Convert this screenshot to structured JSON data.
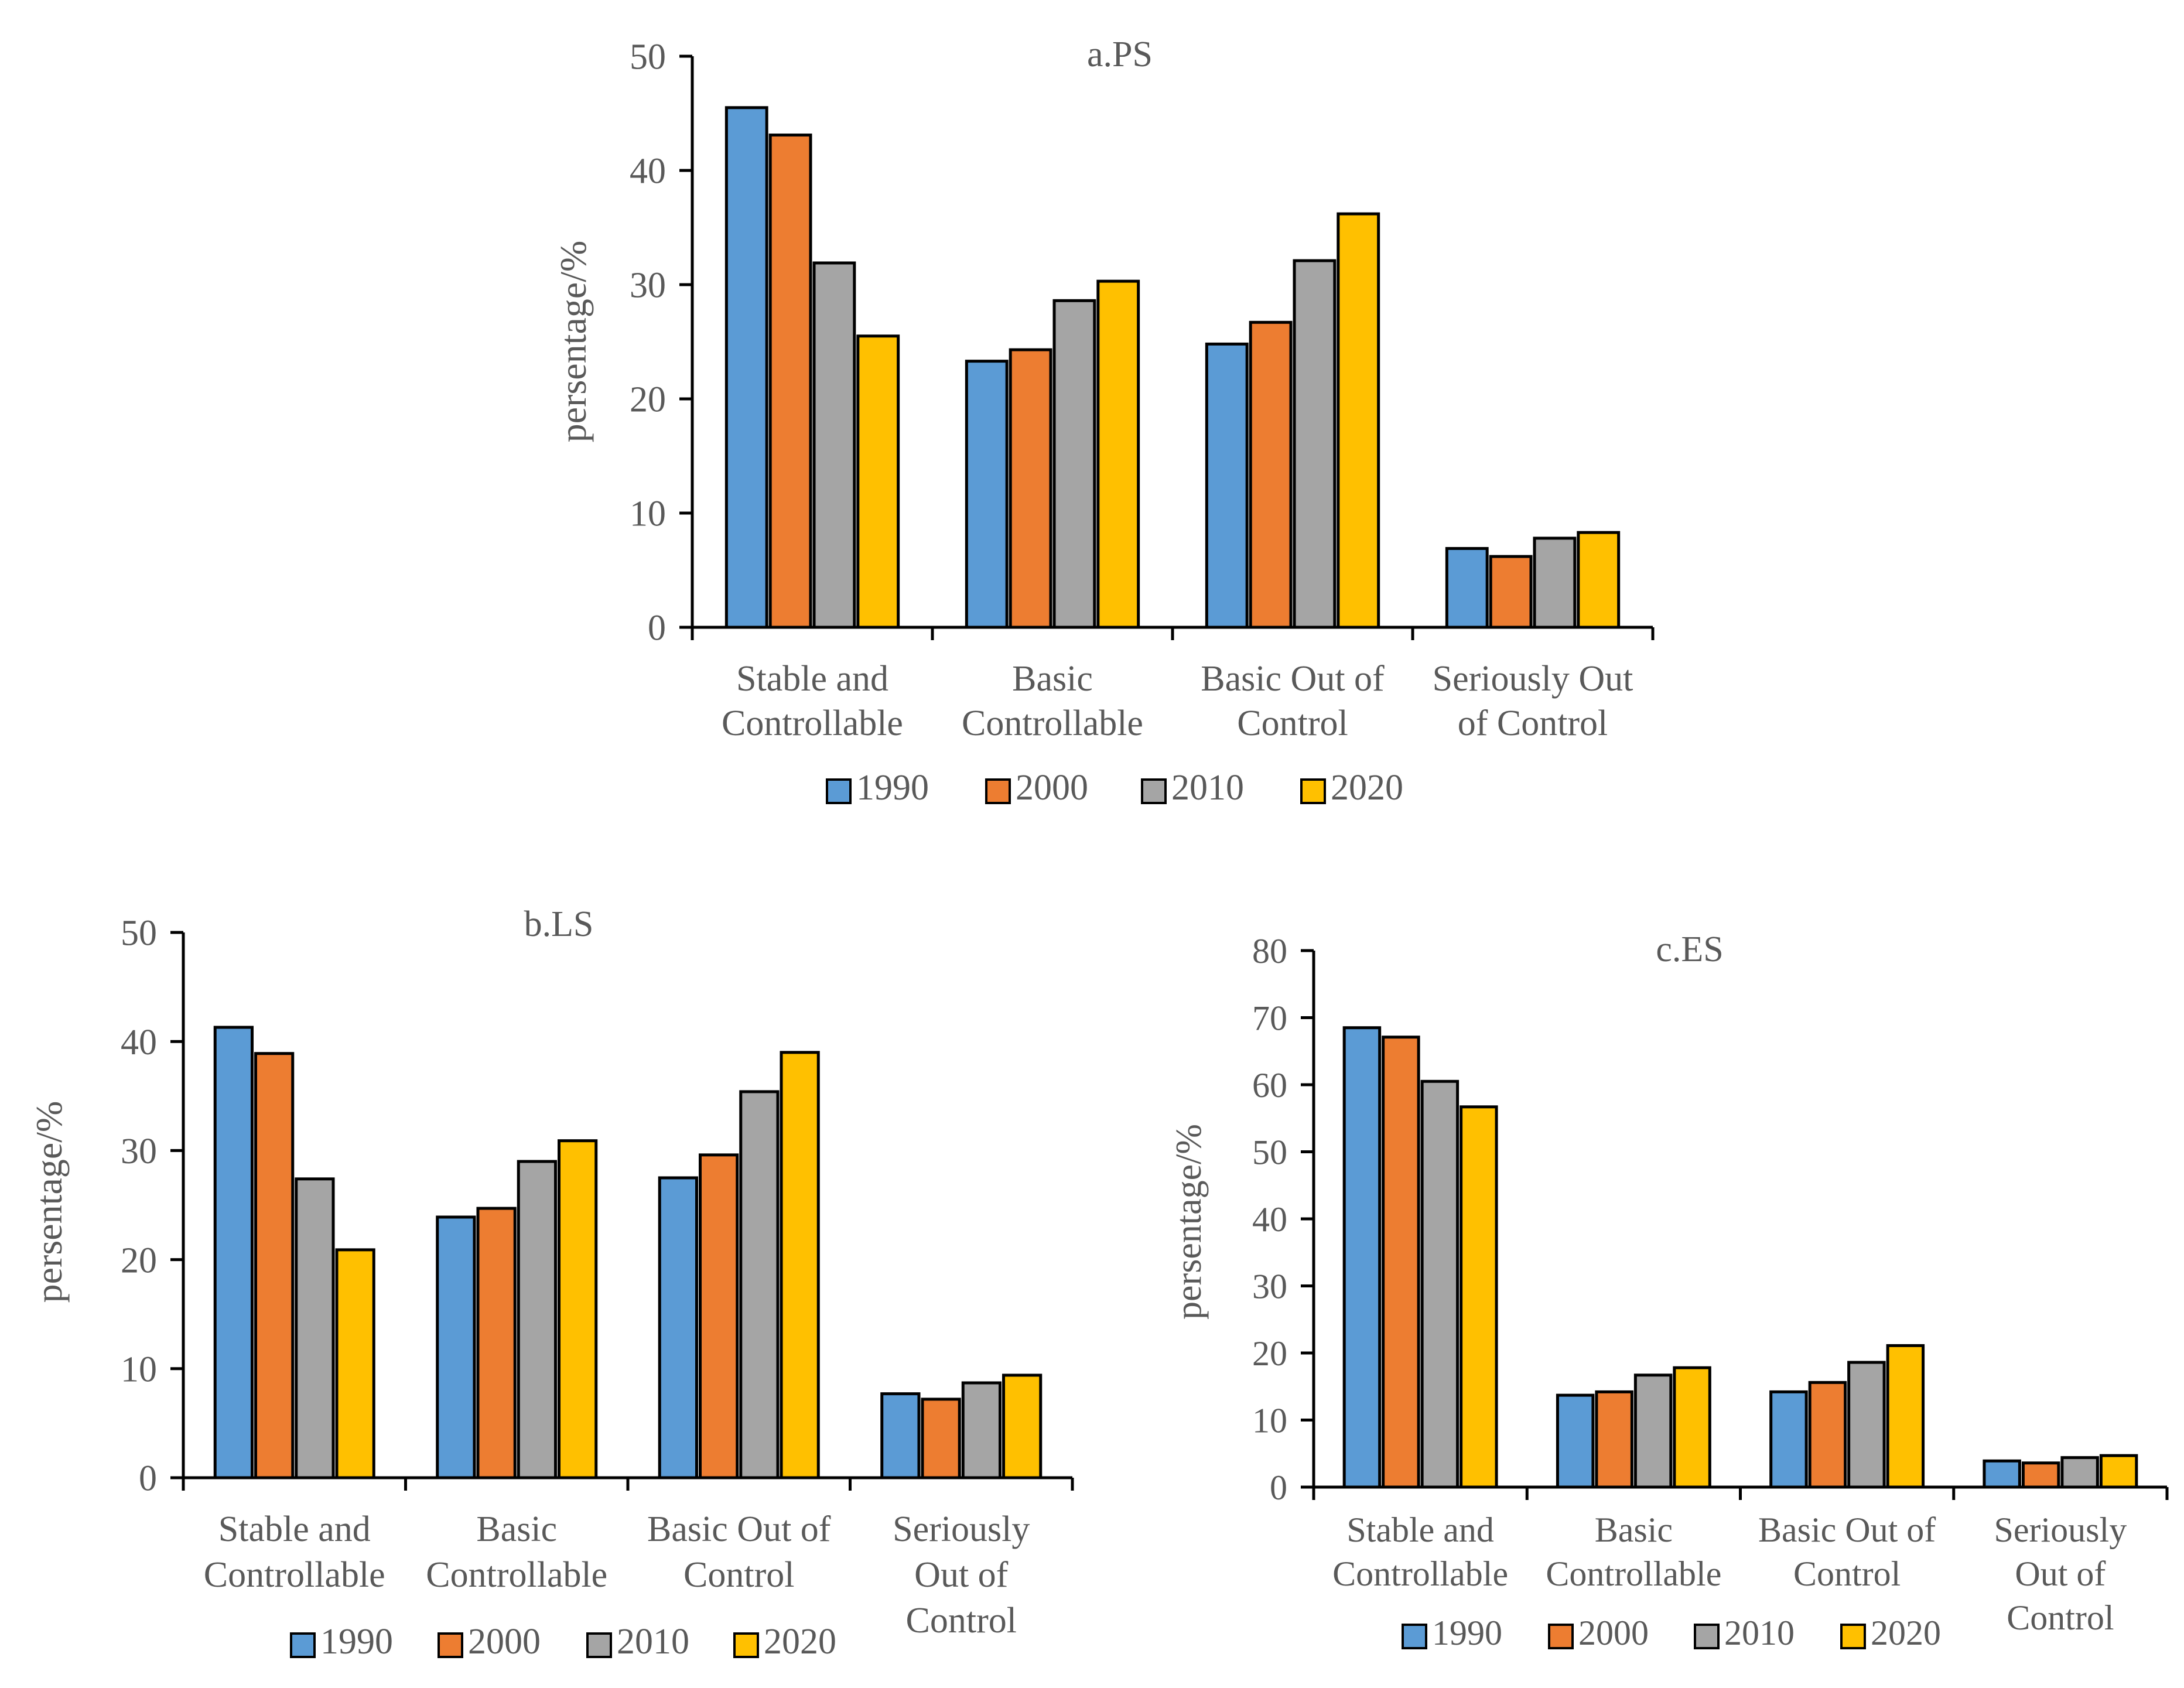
{
  "colors": {
    "1990": "#5b9bd5",
    "2000": "#ed7d31",
    "2010": "#a5a5a5",
    "2020": "#ffc000",
    "axis": "#000000",
    "text": "#595959"
  },
  "chart_data": [
    {
      "type": "bar",
      "title": "a.PS",
      "ylabel": "persentage/%",
      "xlabel": "",
      "ylim": [
        0,
        50
      ],
      "ytick_step": 10,
      "category_lines": [
        [
          "Stable and",
          "Controllable"
        ],
        [
          "Basic",
          "Controllable"
        ],
        [
          "Basic Out of",
          "Control"
        ],
        [
          "Seriously Out",
          "of Control"
        ]
      ],
      "categories": [
        "Stable and Controllable",
        "Basic Controllable",
        "Basic Out of Control",
        "Seriously Out of Control"
      ],
      "series": [
        {
          "name": "1990",
          "values": [
            45.5,
            23.3,
            24.8,
            6.9
          ]
        },
        {
          "name": "2000",
          "values": [
            43.1,
            24.3,
            26.7,
            6.2
          ]
        },
        {
          "name": "2010",
          "values": [
            31.9,
            28.6,
            32.1,
            7.8
          ]
        },
        {
          "name": "2020",
          "values": [
            25.5,
            30.3,
            36.2,
            8.3
          ]
        }
      ],
      "legend": "bottom"
    },
    {
      "type": "bar",
      "title": "b.LS",
      "ylabel": "persentage/%",
      "xlabel": "",
      "ylim": [
        0,
        50
      ],
      "ytick_step": 10,
      "category_lines": [
        [
          "Stable and",
          "Controllable"
        ],
        [
          "Basic",
          "Controllable"
        ],
        [
          "Basic Out of",
          "Control"
        ],
        [
          "Seriously",
          "Out of",
          "Control"
        ]
      ],
      "categories": [
        "Stable and Controllable",
        "Basic Controllable",
        "Basic Out of Control",
        "Seriously Out of Control"
      ],
      "series": [
        {
          "name": "1990",
          "values": [
            41.3,
            23.9,
            27.5,
            7.7
          ]
        },
        {
          "name": "2000",
          "values": [
            38.9,
            24.7,
            29.6,
            7.2
          ]
        },
        {
          "name": "2010",
          "values": [
            27.4,
            29.0,
            35.4,
            8.7
          ]
        },
        {
          "name": "2020",
          "values": [
            20.9,
            30.9,
            39.0,
            9.4
          ]
        }
      ],
      "legend": "bottom"
    },
    {
      "type": "bar",
      "title": "c.ES",
      "ylabel": "persentage/%",
      "xlabel": "",
      "ylim": [
        0,
        80
      ],
      "ytick_step": 10,
      "category_lines": [
        [
          "Stable and",
          "Controllable"
        ],
        [
          "Basic",
          "Controllable"
        ],
        [
          "Basic Out of",
          "Control"
        ],
        [
          "Seriously",
          "Out of",
          "Control"
        ]
      ],
      "categories": [
        "Stable and Controllable",
        "Basic Controllable",
        "Basic Out of Control",
        "Seriously Out of Control"
      ],
      "series": [
        {
          "name": "1990",
          "values": [
            68.5,
            13.7,
            14.2,
            3.9
          ]
        },
        {
          "name": "2000",
          "values": [
            67.1,
            14.2,
            15.6,
            3.6
          ]
        },
        {
          "name": "2010",
          "values": [
            60.5,
            16.7,
            18.6,
            4.4
          ]
        },
        {
          "name": "2020",
          "values": [
            56.7,
            17.8,
            21.1,
            4.7
          ]
        }
      ],
      "legend": "bottom"
    }
  ]
}
